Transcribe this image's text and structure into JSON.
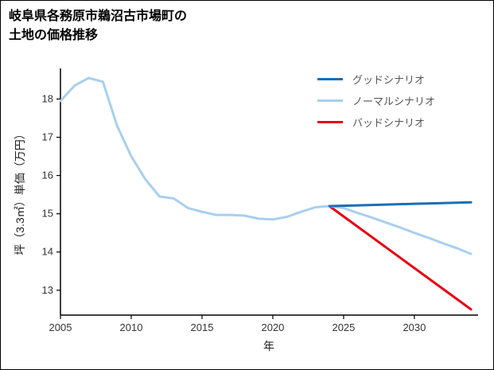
{
  "page": {
    "background": "#ffffff",
    "border_color": "#000000"
  },
  "chart_data": {
    "type": "line",
    "title": "岐阜県各務原市鵜沼古市場町の土地の価格推移",
    "title_lines": "岐阜県各務原市鵜沼古市場町の\n土地の価格推移",
    "xlabel": "年",
    "ylabel": "坪（3.3㎡）単価（万円）",
    "xlim": [
      2005,
      2034.5
    ],
    "ylim": [
      12.35,
      18.8
    ],
    "xticks": [
      2005,
      2010,
      2015,
      2020,
      2025,
      2030
    ],
    "yticks": [
      13,
      14,
      15,
      16,
      17,
      18
    ],
    "grid": false,
    "legend_position": "top-right",
    "axis_color": "#000000",
    "tick_label_color": "#333333",
    "series": [
      {
        "name": "グッドシナリオ",
        "color": "#1a6fb5",
        "width": 3,
        "x": [
          2024,
          2026,
          2028,
          2030,
          2032,
          2034
        ],
        "y": [
          15.2,
          15.22,
          15.24,
          15.26,
          15.28,
          15.3
        ]
      },
      {
        "name": "ノーマルシナリオ",
        "color": "#a9cfee",
        "width": 3,
        "x": [
          2005,
          2006,
          2007,
          2008,
          2009,
          2010,
          2011,
          2012,
          2013,
          2014,
          2015,
          2016,
          2017,
          2018,
          2019,
          2020,
          2021,
          2022,
          2023,
          2024,
          2025,
          2026,
          2027,
          2028,
          2029,
          2030,
          2031,
          2032,
          2033,
          2034
        ],
        "y": [
          17.95,
          18.35,
          18.55,
          18.45,
          17.3,
          16.5,
          15.9,
          15.45,
          15.4,
          15.15,
          15.05,
          14.97,
          14.97,
          14.95,
          14.87,
          14.85,
          14.92,
          15.05,
          15.17,
          15.2,
          15.15,
          15.02,
          14.9,
          14.77,
          14.64,
          14.5,
          14.37,
          14.23,
          14.1,
          13.95
        ]
      },
      {
        "name": "バッドシナリオ",
        "color": "#e60012",
        "width": 3,
        "x": [
          2024,
          2034
        ],
        "y": [
          15.2,
          12.5
        ]
      }
    ]
  }
}
